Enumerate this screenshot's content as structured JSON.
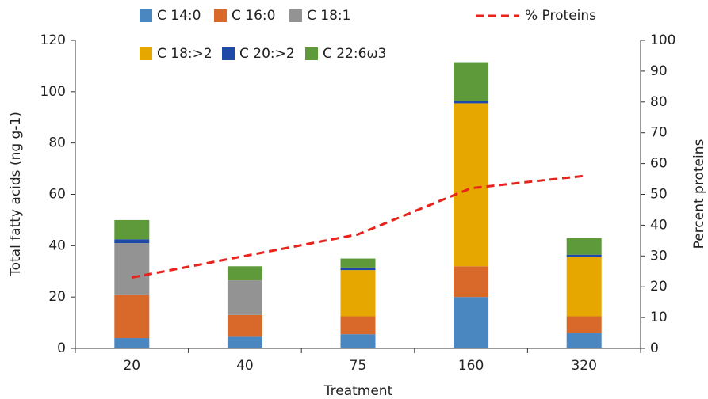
{
  "chart_data": {
    "type": "bar",
    "stacked": true,
    "xlabel": "Treatment",
    "ylabel": "Total fatty acids (ng g-1)",
    "y2label": "Percent proteins",
    "categories": [
      "20",
      "40",
      "75",
      "160",
      "320"
    ],
    "ylim": [
      0,
      120
    ],
    "yticks": [
      0,
      20,
      40,
      60,
      80,
      100,
      120
    ],
    "y2lim": [
      0,
      100
    ],
    "y2ticks": [
      0,
      10,
      20,
      30,
      40,
      50,
      60,
      70,
      80,
      90,
      100
    ],
    "series": [
      {
        "name": "C 14:0",
        "color": "#4a86c0",
        "values": [
          4,
          4.5,
          5.5,
          20,
          6
        ]
      },
      {
        "name": "C 16:0",
        "color": "#d8692a",
        "values": [
          17,
          8.5,
          7,
          12,
          6.5
        ]
      },
      {
        "name": "C 18:1",
        "color": "#939393",
        "values": [
          20,
          13.5,
          0,
          0,
          0
        ]
      },
      {
        "name": "C 18:>2",
        "color": "#e6a800",
        "values": [
          0,
          0,
          18,
          63.5,
          23
        ]
      },
      {
        "name": "C 20:>2",
        "color": "#1f49a8",
        "values": [
          1.5,
          0,
          1,
          1,
          1
        ]
      },
      {
        "name": "C 22:6ω3",
        "color": "#5e9a3a",
        "values": [
          7.5,
          5.5,
          3.5,
          15,
          6.5
        ]
      },
      {
        "name": "% Proteins",
        "color": "#e8231c",
        "type": "line",
        "axis": "y2",
        "dashed": true,
        "values": [
          23,
          30,
          37,
          52,
          56
        ]
      }
    ]
  }
}
